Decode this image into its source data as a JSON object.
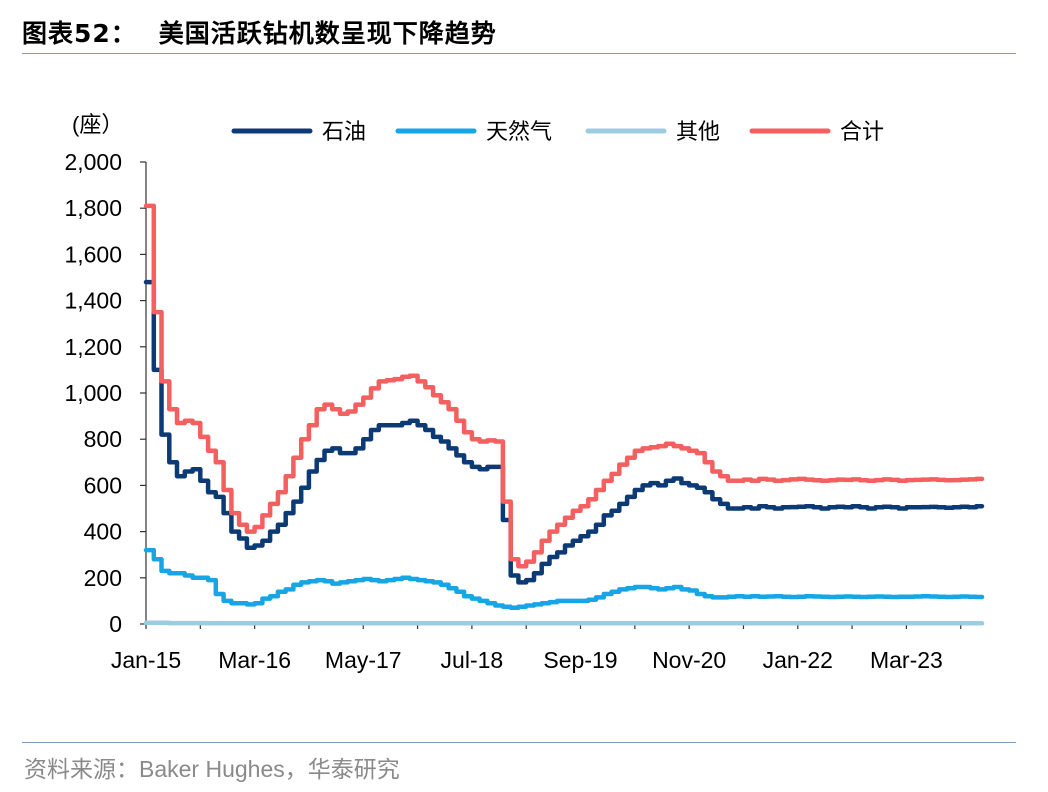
{
  "figure": {
    "number_label": "图表52：",
    "title": "美国活跃钻机数呈现下降趋势",
    "source_prefix": "资料来源：",
    "source_text": "Baker Hughes，华泰研究"
  },
  "chart_data": {
    "type": "line",
    "title": "美国活跃钻机数呈现下降趋势",
    "ylabel": "(座）",
    "xlabel": "",
    "ylim": [
      0,
      2000
    ],
    "yticks": [
      0,
      200,
      400,
      600,
      800,
      1000,
      1200,
      1400,
      1600,
      1800,
      2000
    ],
    "ytick_labels": [
      "0",
      "200",
      "400",
      "600",
      "800",
      "1,000",
      "1,200",
      "1,400",
      "1,600",
      "1,800",
      "2,000"
    ],
    "xticks": [
      "2015-01",
      "2016-03",
      "2017-05",
      "2018-07",
      "2019-09",
      "2020-11",
      "2022-01",
      "2023-03"
    ],
    "xtick_labels": [
      "Jan-15",
      "Mar-16",
      "May-17",
      "Jul-18",
      "Sep-19",
      "Nov-20",
      "Jan-22",
      "Mar-23"
    ],
    "xlim": [
      "2015-01",
      "2024-01"
    ],
    "grid": false,
    "legend_position": "top",
    "x": [
      "2015-01",
      "2015-02",
      "2015-03",
      "2015-04",
      "2015-05",
      "2015-06",
      "2015-07",
      "2015-08",
      "2015-09",
      "2015-10",
      "2015-11",
      "2015-12",
      "2016-01",
      "2016-02",
      "2016-03",
      "2016-04",
      "2016-05",
      "2016-06",
      "2016-07",
      "2016-08",
      "2016-09",
      "2016-10",
      "2016-11",
      "2016-12",
      "2017-01",
      "2017-02",
      "2017-03",
      "2017-04",
      "2017-05",
      "2017-06",
      "2017-07",
      "2017-08",
      "2017-09",
      "2017-10",
      "2017-11",
      "2017-12",
      "2018-01",
      "2018-02",
      "2018-03",
      "2018-04",
      "2018-05",
      "2018-06",
      "2018-07",
      "2018-08",
      "2018-09",
      "2018-10",
      "2018-11",
      "2018-12",
      "2019-01",
      "2019-02",
      "2019-03",
      "2019-04",
      "2019-05",
      "2019-06",
      "2019-07",
      "2019-08",
      "2019-09",
      "2019-10",
      "2019-11",
      "2019-12",
      "2020-01",
      "2020-02",
      "2020-03",
      "2020-04",
      "2020-05",
      "2020-06",
      "2020-07",
      "2020-08",
      "2020-09",
      "2020-10",
      "2020-11",
      "2020-12",
      "2021-01",
      "2021-02",
      "2021-03",
      "2021-04",
      "2021-05",
      "2021-06",
      "2021-07",
      "2021-08",
      "2021-09",
      "2021-10",
      "2021-11",
      "2021-12",
      "2022-01",
      "2022-02",
      "2022-03",
      "2022-04",
      "2022-05",
      "2022-06",
      "2022-07",
      "2022-08",
      "2022-09",
      "2022-10",
      "2022-11",
      "2022-12",
      "2023-01",
      "2023-02",
      "2023-03",
      "2023-04",
      "2023-05",
      "2023-06",
      "2023-07",
      "2023-08",
      "2023-09",
      "2023-10",
      "2023-11",
      "2023-12"
    ],
    "series": [
      {
        "name": "石油",
        "color": "#0c3a74",
        "values": [
          1480,
          1100,
          820,
          700,
          640,
          660,
          670,
          620,
          570,
          550,
          480,
          400,
          370,
          330,
          340,
          360,
          400,
          430,
          480,
          530,
          590,
          660,
          710,
          750,
          760,
          740,
          740,
          760,
          800,
          840,
          860,
          860,
          860,
          870,
          880,
          860,
          840,
          810,
          790,
          760,
          730,
          700,
          680,
          670,
          680,
          680,
          450,
          210,
          180,
          190,
          220,
          260,
          290,
          310,
          340,
          360,
          380,
          400,
          430,
          470,
          490,
          520,
          550,
          580,
          600,
          610,
          600,
          620,
          630,
          610,
          600,
          590,
          570,
          540,
          520,
          500,
          500,
          505,
          500,
          510,
          505,
          500,
          505,
          506,
          508,
          510,
          505,
          500,
          505,
          508,
          505,
          510,
          505,
          500,
          505,
          508,
          505,
          500,
          505,
          505,
          506,
          507,
          505,
          503,
          505,
          508,
          505,
          510
        ]
      },
      {
        "name": "天然气",
        "color": "#17a5e6",
        "values": [
          320,
          280,
          230,
          220,
          220,
          210,
          200,
          200,
          190,
          130,
          100,
          90,
          90,
          85,
          90,
          110,
          120,
          140,
          150,
          170,
          180,
          185,
          190,
          185,
          175,
          180,
          185,
          190,
          195,
          190,
          185,
          190,
          195,
          200,
          195,
          190,
          185,
          180,
          170,
          155,
          140,
          120,
          110,
          100,
          90,
          80,
          75,
          70,
          75,
          80,
          85,
          90,
          95,
          100,
          100,
          100,
          100,
          105,
          115,
          130,
          140,
          150,
          155,
          160,
          160,
          155,
          150,
          155,
          160,
          150,
          145,
          130,
          120,
          115,
          115,
          118,
          120,
          118,
          120,
          118,
          119,
          120,
          118,
          117,
          118,
          120,
          119,
          118,
          117,
          118,
          119,
          118,
          117,
          118,
          119,
          118,
          117,
          118,
          118,
          119,
          120,
          119,
          118,
          117,
          118,
          119,
          118,
          117
        ]
      },
      {
        "name": "其他",
        "color": "#9dcce0",
        "values": [
          5,
          5,
          5,
          4,
          4,
          4,
          4,
          4,
          3,
          3,
          3,
          3,
          3,
          3,
          3,
          3,
          3,
          3,
          3,
          3,
          3,
          3,
          3,
          3,
          3,
          3,
          3,
          3,
          3,
          3,
          3,
          3,
          3,
          3,
          3,
          3,
          3,
          3,
          3,
          3,
          3,
          3,
          3,
          3,
          3,
          3,
          3,
          3,
          3,
          3,
          3,
          3,
          3,
          3,
          3,
          3,
          3,
          3,
          3,
          3,
          3,
          3,
          3,
          3,
          3,
          3,
          3,
          3,
          3,
          3,
          3,
          3,
          3,
          3,
          3,
          3,
          3,
          3,
          3,
          3,
          3,
          3,
          3,
          3,
          3,
          3,
          3,
          3,
          3,
          3,
          3,
          3,
          3,
          3,
          3,
          3,
          3,
          3,
          3,
          3,
          3,
          3,
          3,
          3,
          3,
          3,
          3,
          3
        ]
      },
      {
        "name": "合计",
        "color": "#f45f5f",
        "values": [
          1810,
          1350,
          1050,
          930,
          870,
          880,
          870,
          810,
          750,
          700,
          580,
          480,
          430,
          400,
          420,
          470,
          520,
          570,
          640,
          720,
          800,
          860,
          930,
          950,
          930,
          910,
          920,
          950,
          980,
          1020,
          1050,
          1055,
          1060,
          1070,
          1075,
          1050,
          1025,
          990,
          960,
          930,
          880,
          830,
          800,
          790,
          795,
          790,
          530,
          280,
          250,
          270,
          310,
          360,
          400,
          430,
          460,
          490,
          510,
          540,
          580,
          620,
          650,
          690,
          720,
          750,
          760,
          765,
          770,
          780,
          770,
          760,
          750,
          740,
          700,
          660,
          640,
          620,
          620,
          625,
          620,
          628,
          625,
          620,
          623,
          626,
          628,
          625,
          622,
          620,
          622,
          625,
          624,
          626,
          622,
          620,
          623,
          626,
          624,
          620,
          623,
          624,
          625,
          626,
          624,
          622,
          623,
          625,
          626,
          628
        ]
      }
    ]
  }
}
